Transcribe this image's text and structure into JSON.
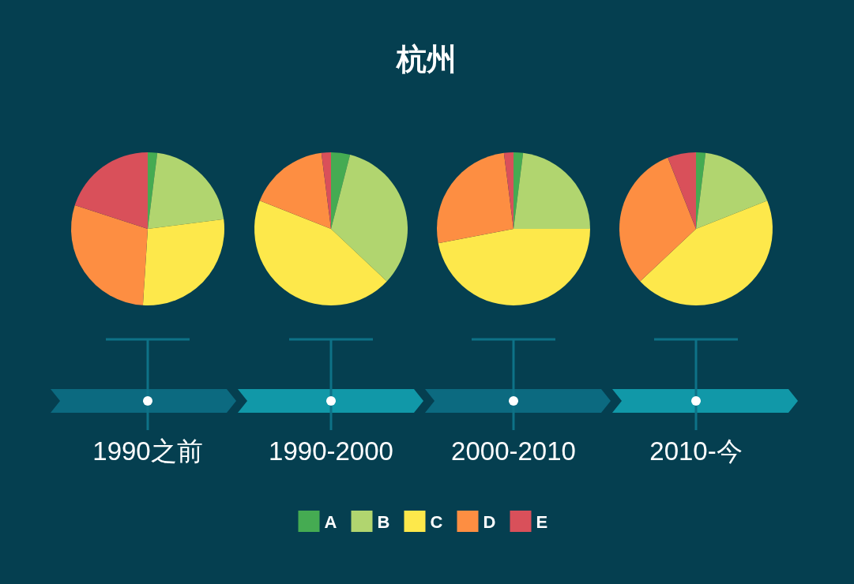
{
  "chart_data": [
    {
      "type": "pie",
      "title": "杭州",
      "subtitle": "1990之前",
      "categories": [
        "A",
        "B",
        "C",
        "D",
        "E"
      ],
      "values": [
        2,
        21,
        28,
        29,
        20
      ],
      "colors": [
        "#45ab52",
        "#b1d56f",
        "#fde84b",
        "#fd8e42",
        "#d9505a"
      ],
      "legend": "bottom"
    },
    {
      "type": "pie",
      "subtitle": "1990-2000",
      "values": [
        4,
        33,
        44,
        17,
        2
      ],
      "colors": [
        "#45ab52",
        "#b1d56f",
        "#fde84b",
        "#fd8e42",
        "#d9505a"
      ]
    },
    {
      "type": "pie",
      "subtitle": "2000-2010",
      "values": [
        2,
        23,
        47,
        26,
        2
      ],
      "colors": [
        "#45ab52",
        "#b1d56f",
        "#fde84b",
        "#fd8e42",
        "#d9505a"
      ]
    },
    {
      "type": "pie",
      "subtitle": "2010-今",
      "values": [
        2,
        17,
        44,
        31,
        6
      ],
      "colors": [
        "#45ab52",
        "#b1d56f",
        "#fde84b",
        "#fd8e42",
        "#d9505a"
      ]
    }
  ]
}
